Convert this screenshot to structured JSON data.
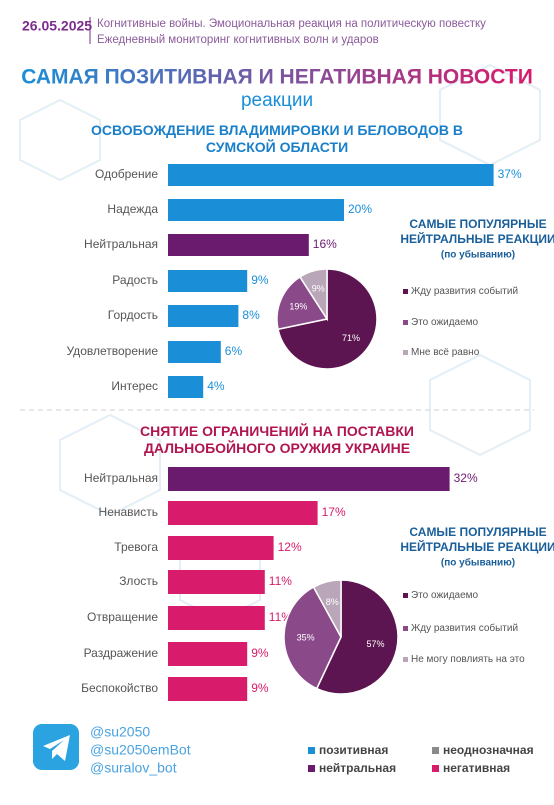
{
  "header": {
    "date": "26.05.2025",
    "line1": "Когнитивные войны. Эмоциональная реакция на политическую повестку",
    "line2": "Ежедневный мониторинг когнитивных волн и ударов",
    "title": "САМАЯ ПОЗИТИВНАЯ И НЕГАТИВНАЯ НОВОСТИ",
    "subtitle": "реакции"
  },
  "chart_data": [
    {
      "type": "bar",
      "title": "ОСВОБОЖДЕНИЕ ВЛАДИМИРОВКИ И БЕЛОВОДОВ В СУМСКОЙ ОБЛАСТИ",
      "title_color": "#1a7fc9",
      "categories": [
        "Одобрение",
        "Надежда",
        "Нейтральная",
        "Радость",
        "Гордость",
        "Удовлетворение",
        "Интерес"
      ],
      "values": [
        37,
        20,
        16,
        9,
        8,
        6,
        4
      ],
      "value_labels": [
        "37%",
        "20%",
        "16%",
        "9%",
        "8%",
        "6%",
        "4%"
      ],
      "colors": [
        "#1a8fd8",
        "#1a8fd8",
        "#6a1b6e",
        "#1a8fd8",
        "#1a8fd8",
        "#1a8fd8",
        "#1a8fd8"
      ]
    },
    {
      "type": "pie",
      "title": "САМЫЕ ПОПУЛЯРНЫЕ НЕЙТРАЛЬНЫЕ РЕАКЦИИ",
      "subtitle": "(по убыванию)",
      "categories": [
        "Жду развития событий",
        "Это ожидаемо",
        "Мне всё равно"
      ],
      "values": [
        71,
        19,
        9
      ],
      "value_labels": [
        "71%",
        "19%",
        "9%"
      ],
      "colors": [
        "#5c1550",
        "#8a4a8a",
        "#b9a6b9"
      ]
    },
    {
      "type": "bar",
      "title": "СНЯТИЕ ОГРАНИЧЕНИЙ НА ПОСТАВКИ ДАЛЬНОБОЙНОГО ОРУЖИЯ УКРАИНЕ",
      "title_color": "#b0154f",
      "categories": [
        "Нейтральная",
        "Ненависть",
        "Тревога",
        "Злость",
        "Отвращение",
        "Раздражение",
        "Беспокойство"
      ],
      "values": [
        32,
        17,
        12,
        11,
        11,
        9,
        9
      ],
      "value_labels": [
        "32%",
        "17%",
        "12%",
        "11%",
        "11%",
        "9%",
        "9%"
      ],
      "colors": [
        "#6a1b6e",
        "#d81b6a",
        "#d81b6a",
        "#d81b6a",
        "#d81b6a",
        "#d81b6a",
        "#d81b6a"
      ]
    },
    {
      "type": "pie",
      "title": "САМЫЕ ПОПУЛЯРНЫЕ НЕЙТРАЛЬНЫЕ РЕАКЦИИ",
      "subtitle": "(по убыванию)",
      "categories": [
        "Это ожидаемо",
        "Жду развития событий",
        "Не могу повлиять на это"
      ],
      "values": [
        57,
        35,
        8
      ],
      "value_labels": [
        "57%",
        "35%",
        "8%"
      ],
      "colors": [
        "#5c1550",
        "#8a4a8a",
        "#b9a6b9"
      ]
    }
  ],
  "footer": {
    "handles": [
      "@su2050",
      "@su2050emBot",
      "@suralov_bot"
    ],
    "legend": [
      {
        "name": "позитивная",
        "color": "#1a8fd8"
      },
      {
        "name": "неоднозначная",
        "color": "#8a8a8a"
      },
      {
        "name": "нейтральная",
        "color": "#6a1b6e"
      },
      {
        "name": "негативная",
        "color": "#d81b6a"
      }
    ]
  }
}
